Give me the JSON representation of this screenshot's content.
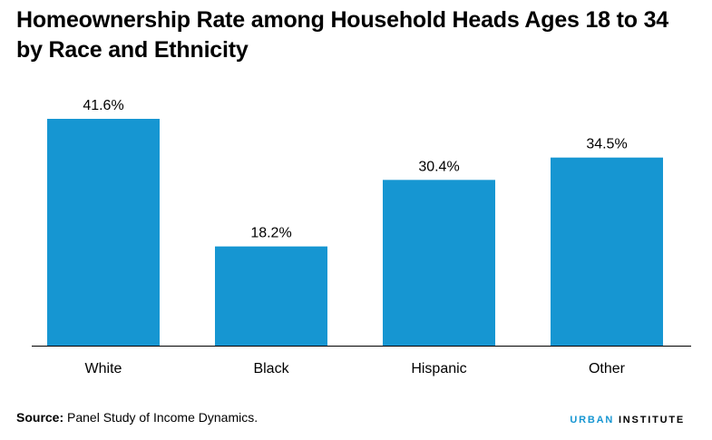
{
  "title": {
    "line1": "Homeownership Rate among Household Heads Ages 18 to 34",
    "line2": "by Race and Ethnicity"
  },
  "chart_data": {
    "type": "bar",
    "categories": [
      "White",
      "Black",
      "Hispanic",
      "Other"
    ],
    "values": [
      41.6,
      18.2,
      30.4,
      34.5
    ],
    "data_labels": [
      "41.6%",
      "18.2%",
      "30.4%",
      "34.5%"
    ],
    "ylim": [
      0,
      41.6
    ],
    "bar_color": "#1696d2",
    "axis_color": "#000000",
    "grid": false
  },
  "footer": {
    "source_label": "Source:",
    "source_text": " Panel Study of Income Dynamics."
  },
  "brand": {
    "part1": "URBAN",
    "part2": "INSTITUTE",
    "accent_color": "#1696d2"
  }
}
